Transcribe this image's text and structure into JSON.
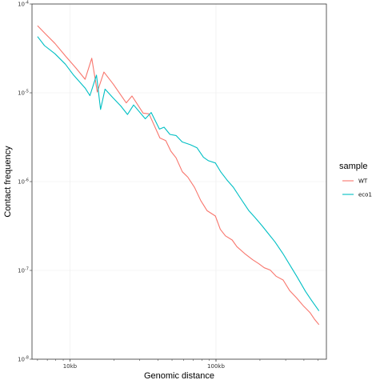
{
  "chart_data": {
    "type": "line",
    "xlabel": "Genomic distance",
    "ylabel": "Contact frequency",
    "x_scale": "log",
    "y_scale": "log",
    "xlim": [
      5500,
      570000
    ],
    "ylim": [
      1e-08,
      0.0001
    ],
    "x_ticks": [
      {
        "value": 10000,
        "label": "10kb"
      },
      {
        "value": 100000,
        "label": "100kb"
      }
    ],
    "y_ticks": [
      {
        "value": 1e-08,
        "base": "10",
        "exp": "-8"
      },
      {
        "value": 1e-07,
        "base": "10",
        "exp": "-7"
      },
      {
        "value": 1e-06,
        "base": "10",
        "exp": "-6"
      },
      {
        "value": 1e-05,
        "base": "10",
        "exp": "-5"
      },
      {
        "value": 0.0001,
        "base": "10",
        "exp": "-4"
      }
    ],
    "grid": true,
    "legend": {
      "title": "sample",
      "position": "right"
    },
    "series": [
      {
        "name": "WT",
        "color": "#F8766D",
        "points": [
          [
            6000,
            5.7e-05
          ],
          [
            6800,
            4.6e-05
          ],
          [
            7900,
            3.6e-05
          ],
          [
            9300,
            2.6e-05
          ],
          [
            11000,
            1.9e-05
          ],
          [
            12700,
            1.42e-05
          ],
          [
            14100,
            2.45e-05
          ],
          [
            15400,
            1.02e-05
          ],
          [
            17100,
            1.71e-05
          ],
          [
            19800,
            1.25e-05
          ],
          [
            24300,
            7.7e-06
          ],
          [
            26600,
            9.2e-06
          ],
          [
            31700,
            5.9e-06
          ],
          [
            34800,
            5.8e-06
          ],
          [
            41300,
            3.1e-06
          ],
          [
            45300,
            2.9e-06
          ],
          [
            49100,
            2.2e-06
          ],
          [
            53300,
            1.85e-06
          ],
          [
            58800,
            1.29e-06
          ],
          [
            64200,
            1.12e-06
          ],
          [
            71300,
            8.6e-07
          ],
          [
            78700,
            6.1e-07
          ],
          [
            87000,
            4.7e-07
          ],
          [
            99000,
            4.1e-07
          ],
          [
            107000,
            2.9e-07
          ],
          [
            116000,
            2.45e-07
          ],
          [
            129000,
            2.2e-07
          ],
          [
            139000,
            1.85e-07
          ],
          [
            157000,
            1.55e-07
          ],
          [
            178000,
            1.32e-07
          ],
          [
            196000,
            1.19e-07
          ],
          [
            214000,
            1.07e-07
          ],
          [
            235000,
            1.01e-07
          ],
          [
            258000,
            8.6e-08
          ],
          [
            288000,
            7.8e-08
          ],
          [
            320000,
            5.9e-08
          ],
          [
            356000,
            4.9e-08
          ],
          [
            396000,
            4e-08
          ],
          [
            440000,
            3.35e-08
          ],
          [
            474000,
            2.8e-08
          ],
          [
            507000,
            2.45e-08
          ]
        ]
      },
      {
        "name": "eco1",
        "color": "#00BFC4",
        "points": [
          [
            6000,
            4.3e-05
          ],
          [
            6700,
            3.4e-05
          ],
          [
            7900,
            2.75e-05
          ],
          [
            9300,
            2.1e-05
          ],
          [
            10600,
            1.58e-05
          ],
          [
            12700,
            1.13e-05
          ],
          [
            13700,
            9.3e-06
          ],
          [
            15200,
            1.58e-05
          ],
          [
            16200,
            6.5e-06
          ],
          [
            17400,
            1.1e-05
          ],
          [
            19700,
            8.8e-06
          ],
          [
            22300,
            7.1e-06
          ],
          [
            24800,
            5.7e-06
          ],
          [
            27300,
            7.3e-06
          ],
          [
            32800,
            5.1e-06
          ],
          [
            36000,
            6e-06
          ],
          [
            41000,
            3.9e-06
          ],
          [
            44100,
            4.1e-06
          ],
          [
            48400,
            3.4e-06
          ],
          [
            53300,
            3.3e-06
          ],
          [
            58700,
            2.8e-06
          ],
          [
            66700,
            2.6e-06
          ],
          [
            74200,
            2.4e-06
          ],
          [
            82000,
            1.88e-06
          ],
          [
            88700,
            1.72e-06
          ],
          [
            99000,
            1.62e-06
          ],
          [
            108000,
            1.28e-06
          ],
          [
            119000,
            1.04e-06
          ],
          [
            131000,
            8.7e-07
          ],
          [
            150000,
            6.2e-07
          ],
          [
            168000,
            4.7e-07
          ],
          [
            186000,
            3.9e-07
          ],
          [
            206000,
            3.2e-07
          ],
          [
            228000,
            2.6e-07
          ],
          [
            253000,
            2.1e-07
          ],
          [
            287000,
            1.55e-07
          ],
          [
            328000,
            1.08e-07
          ],
          [
            357000,
            8.6e-08
          ],
          [
            410000,
            5.8e-08
          ],
          [
            447000,
            4.7e-08
          ],
          [
            507000,
            3.5e-08
          ]
        ]
      }
    ]
  }
}
